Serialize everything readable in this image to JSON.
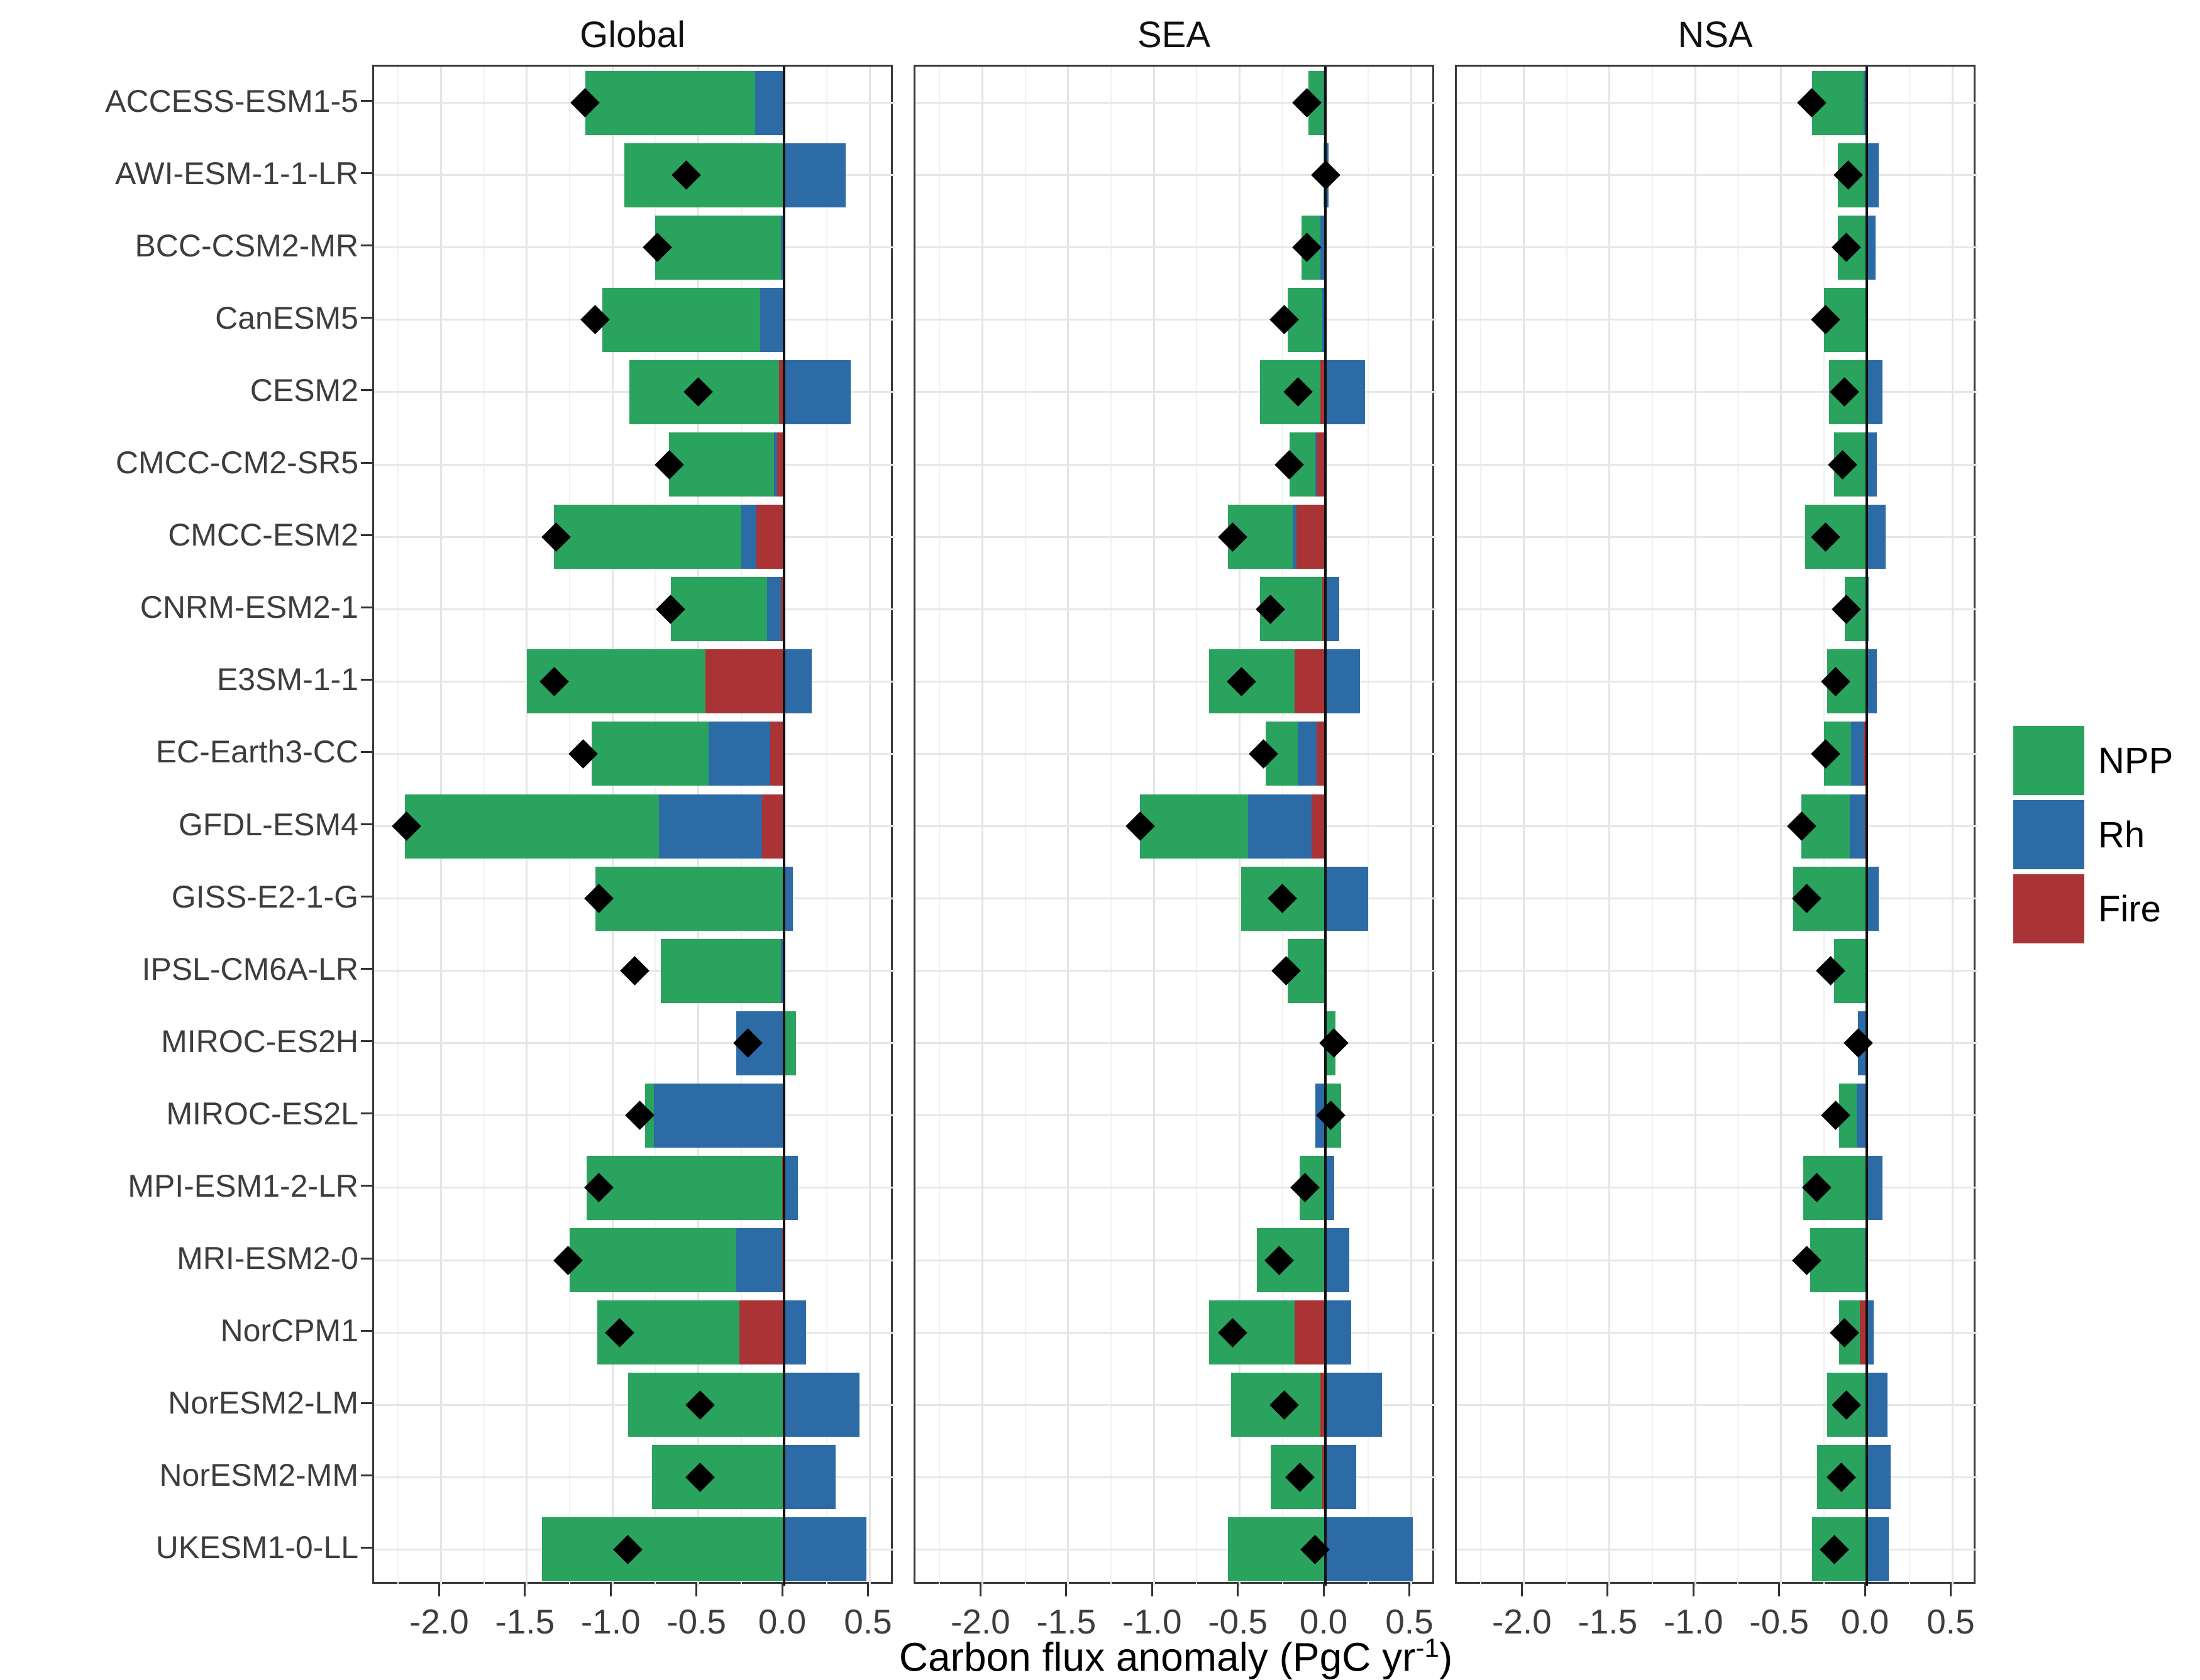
{
  "panels": [
    {
      "label": "Global"
    },
    {
      "label": "SEA"
    },
    {
      "label": "NSA"
    }
  ],
  "axis": {
    "xlabel_main": "Carbon flux anomaly (PgC yr",
    "xlabel_sup": "-1",
    "xlabel_close": ")",
    "xtick_labels": [
      "-2.0",
      "-1.5",
      "-1.0",
      "-0.5",
      "0.0",
      "0.5"
    ]
  },
  "legend": {
    "items": [
      {
        "label": "NPP",
        "color": "#2aa35f"
      },
      {
        "label": "Rh",
        "color": "#2c6ba6"
      },
      {
        "label": "Fire",
        "color": "#a93335"
      }
    ]
  },
  "colors": {
    "npp": "#2aa35f",
    "rh": "#2c6ba6",
    "fire": "#a93335",
    "marker": "#000000",
    "zero_line": "#111111"
  },
  "chart_data": {
    "type": "bar",
    "orientation": "horizontal",
    "stacked": true,
    "stack_order_from_zero": [
      "fire",
      "rh",
      "npp"
    ],
    "marker_shape": "diamond",
    "xlabel": "Carbon flux anomaly (PgC yr-1)",
    "xlim": [
      -2.39,
      0.645
    ],
    "xticks": [
      -2.0,
      -1.5,
      -1.0,
      -0.5,
      0.0,
      0.5
    ],
    "grid": true,
    "legend_position": "right",
    "categories": [
      "ACCESS-ESM1-5",
      "AWI-ESM-1-1-LR",
      "BCC-CSM2-MR",
      "CanESM5",
      "CESM2",
      "CMCC-CM2-SR5",
      "CMCC-ESM2",
      "CNRM-ESM2-1",
      "E3SM-1-1",
      "EC-Earth3-CC",
      "GFDL-ESM4",
      "GISS-E2-1-G",
      "IPSL-CM6A-LR",
      "MIROC-ES2H",
      "MIROC-ES2L",
      "MPI-ESM1-2-LR",
      "MRI-ESM2-0",
      "NorCPM1",
      "NorESM2-LM",
      "NorESM2-MM",
      "UKESM1-0-LL"
    ],
    "panels": [
      {
        "name": "Global",
        "rows": [
          {
            "npp": -0.99,
            "rh": -0.17,
            "fire": 0,
            "diamond": -1.16
          },
          {
            "npp": -0.93,
            "rh": 0.36,
            "fire": 0,
            "diamond": -0.57
          },
          {
            "npp": -0.73,
            "rh": -0.02,
            "fire": 0,
            "diamond": -0.74
          },
          {
            "npp": -0.92,
            "rh": -0.14,
            "fire": 0,
            "diamond": -1.1
          },
          {
            "npp": -0.87,
            "rh": 0.39,
            "fire": -0.03,
            "diamond": -0.5
          },
          {
            "npp": -0.61,
            "rh": -0.02,
            "fire": -0.04,
            "diamond": -0.67
          },
          {
            "npp": -1.09,
            "rh": -0.09,
            "fire": -0.16,
            "diamond": -1.33
          },
          {
            "npp": -0.56,
            "rh": -0.08,
            "fire": -0.02,
            "diamond": -0.66
          },
          {
            "npp": -1.04,
            "rh": 0.16,
            "fire": -0.46,
            "diamond": -1.34
          },
          {
            "npp": -0.68,
            "rh": -0.36,
            "fire": -0.08,
            "diamond": -1.17
          },
          {
            "npp": -1.48,
            "rh": -0.6,
            "fire": -0.13,
            "diamond": -2.2
          },
          {
            "npp": -1.1,
            "rh": 0.05,
            "fire": 0,
            "diamond": -1.08
          },
          {
            "npp": -0.7,
            "rh": -0.02,
            "fire": 0,
            "diamond": -0.87
          },
          {
            "npp": 0.07,
            "rh": -0.28,
            "fire": 0,
            "diamond": -0.21
          },
          {
            "npp": -0.05,
            "rh": -0.76,
            "fire": 0,
            "diamond": -0.84
          },
          {
            "npp": -1.14,
            "rh": 0.08,
            "fire": -0.01,
            "diamond": -1.08
          },
          {
            "npp": -0.97,
            "rh": -0.27,
            "fire": -0.01,
            "diamond": -1.26
          },
          {
            "npp": -0.83,
            "rh": 0.13,
            "fire": -0.26,
            "diamond": -0.96
          },
          {
            "npp": -0.91,
            "rh": 0.44,
            "fire": 0,
            "diamond": -0.49
          },
          {
            "npp": -0.77,
            "rh": 0.3,
            "fire": 0,
            "diamond": -0.49
          },
          {
            "npp": -1.41,
            "rh": 0.48,
            "fire": 0,
            "diamond": -0.91
          }
        ]
      },
      {
        "name": "SEA",
        "rows": [
          {
            "npp": -0.09,
            "rh": -0.01,
            "fire": 0,
            "diamond": -0.11
          },
          {
            "npp": -0.01,
            "rh": 0.02,
            "fire": 0,
            "diamond": 0.0
          },
          {
            "npp": -0.11,
            "rh": -0.03,
            "fire": 0,
            "diamond": -0.11
          },
          {
            "npp": -0.2,
            "rh": -0.02,
            "fire": 0,
            "diamond": -0.24
          },
          {
            "npp": -0.35,
            "rh": 0.23,
            "fire": -0.03,
            "diamond": -0.16
          },
          {
            "npp": -0.15,
            "rh": -0.01,
            "fire": -0.05,
            "diamond": -0.21
          },
          {
            "npp": -0.38,
            "rh": -0.02,
            "fire": -0.17,
            "diamond": -0.54
          },
          {
            "npp": -0.36,
            "rh": 0.08,
            "fire": -0.02,
            "diamond": -0.32
          },
          {
            "npp": -0.5,
            "rh": 0.2,
            "fire": -0.18,
            "diamond": -0.49
          },
          {
            "npp": -0.19,
            "rh": -0.11,
            "fire": -0.05,
            "diamond": -0.36
          },
          {
            "npp": -0.63,
            "rh": -0.37,
            "fire": -0.08,
            "diamond": -1.08
          },
          {
            "npp": -0.49,
            "rh": 0.25,
            "fire": 0,
            "diamond": -0.25
          },
          {
            "npp": -0.22,
            "rh": 0,
            "fire": 0,
            "diamond": -0.23
          },
          {
            "npp": 0.06,
            "rh": 0,
            "fire": 0,
            "diamond": 0.05
          },
          {
            "npp": 0.09,
            "rh": -0.06,
            "fire": 0,
            "diamond": 0.03
          },
          {
            "npp": -0.15,
            "rh": 0.05,
            "fire": 0,
            "diamond": -0.12
          },
          {
            "npp": -0.4,
            "rh": 0.14,
            "fire": 0,
            "diamond": -0.27
          },
          {
            "npp": -0.5,
            "rh": 0.15,
            "fire": -0.18,
            "diamond": -0.54
          },
          {
            "npp": -0.52,
            "rh": 0.33,
            "fire": -0.03,
            "diamond": -0.24
          },
          {
            "npp": -0.3,
            "rh": 0.18,
            "fire": -0.02,
            "diamond": -0.15
          },
          {
            "npp": -0.57,
            "rh": 0.51,
            "fire": 0,
            "diamond": -0.06
          }
        ]
      },
      {
        "name": "NSA",
        "rows": [
          {
            "npp": -0.3,
            "rh": -0.02,
            "fire": 0,
            "diamond": -0.32
          },
          {
            "npp": -0.17,
            "rh": 0.07,
            "fire": 0,
            "diamond": -0.11
          },
          {
            "npp": -0.17,
            "rh": 0.05,
            "fire": 0,
            "diamond": -0.12
          },
          {
            "npp": -0.25,
            "rh": 0,
            "fire": 0,
            "diamond": -0.24
          },
          {
            "npp": -0.22,
            "rh": 0.09,
            "fire": 0,
            "diamond": -0.13
          },
          {
            "npp": -0.19,
            "rh": 0.06,
            "fire": 0,
            "diamond": -0.14
          },
          {
            "npp": -0.36,
            "rh": 0.11,
            "fire": 0,
            "diamond": -0.24
          },
          {
            "npp": -0.13,
            "rh": 0.01,
            "fire": 0,
            "diamond": -0.12
          },
          {
            "npp": -0.23,
            "rh": 0.06,
            "fire": 0,
            "diamond": -0.18
          },
          {
            "npp": -0.16,
            "rh": -0.07,
            "fire": -0.02,
            "diamond": -0.24
          },
          {
            "npp": -0.28,
            "rh": -0.09,
            "fire": -0.01,
            "diamond": -0.38
          },
          {
            "npp": -0.43,
            "rh": 0.07,
            "fire": 0,
            "diamond": -0.35
          },
          {
            "npp": -0.19,
            "rh": 0,
            "fire": 0,
            "diamond": -0.21
          },
          {
            "npp": 0,
            "rh": -0.05,
            "fire": 0,
            "diamond": -0.05
          },
          {
            "npp": -0.1,
            "rh": -0.06,
            "fire": 0,
            "diamond": -0.18
          },
          {
            "npp": -0.37,
            "rh": 0.09,
            "fire": 0,
            "diamond": -0.29
          },
          {
            "npp": -0.32,
            "rh": -0.01,
            "fire": 0,
            "diamond": -0.35
          },
          {
            "npp": -0.12,
            "rh": 0.04,
            "fire": -0.04,
            "diamond": -0.13
          },
          {
            "npp": -0.23,
            "rh": 0.12,
            "fire": 0,
            "diamond": -0.12
          },
          {
            "npp": -0.29,
            "rh": 0.14,
            "fire": 0,
            "diamond": -0.15
          },
          {
            "npp": -0.32,
            "rh": 0.13,
            "fire": 0,
            "diamond": -0.19
          }
        ]
      }
    ]
  }
}
